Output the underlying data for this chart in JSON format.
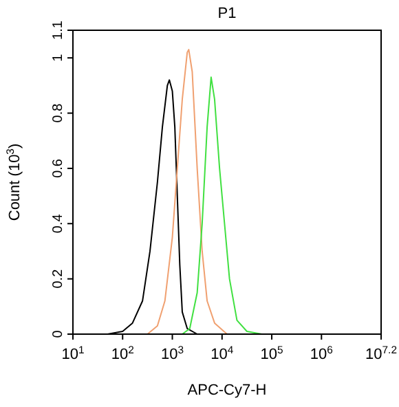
{
  "chart_data": {
    "type": "line",
    "title": "P1",
    "xlabel": "APC-Cy7-H",
    "ylabel": "Count (10$^{3}$)",
    "log": "x",
    "xlim": [
      10,
      15848932
    ],
    "xticks": [
      {
        "value": 10,
        "label": "10$^{1}$"
      },
      {
        "value": 100,
        "label": "10$^{2}$"
      },
      {
        "value": 1000,
        "label": "10$^{3}$"
      },
      {
        "value": 10000,
        "label": "10$^{4}$"
      },
      {
        "value": 100000,
        "label": "10$^{5}$"
      },
      {
        "value": 1000000,
        "label": "10$^{6}$"
      },
      {
        "value": 15848932,
        "label": "10$^{7.2}$"
      }
    ],
    "ylim": [
      0,
      1.1
    ],
    "yticks": [
      0,
      0.2,
      0.4,
      0.6,
      0.8,
      1,
      1.1
    ],
    "grid": false,
    "marker": "none",
    "line_style": "solid",
    "series": [
      {
        "color": "#000000",
        "x": [
          50,
          100,
          158,
          251,
          355,
          501,
          631,
          794,
          871,
          1000,
          1122,
          1259,
          1413,
          1585,
          1995,
          3162
        ],
        "values": [
          0,
          0.01,
          0.04,
          0.12,
          0.3,
          0.55,
          0.75,
          0.9,
          0.92,
          0.88,
          0.75,
          0.5,
          0.25,
          0.08,
          0.02,
          0
        ]
      },
      {
        "color": "#f0a070",
        "x": [
          316,
          501,
          708,
          1000,
          1259,
          1585,
          1995,
          2138,
          2512,
          3162,
          3981,
          5012,
          7079,
          12589
        ],
        "values": [
          0,
          0.03,
          0.12,
          0.35,
          0.6,
          0.85,
          1.02,
          1.03,
          0.95,
          0.6,
          0.3,
          0.12,
          0.04,
          0
        ]
      },
      {
        "color": "#40e040",
        "x": [
          1585,
          2239,
          3162,
          3981,
          5012,
          6026,
          7079,
          8913,
          11220,
          14125,
          19953,
          31623,
          63096
        ],
        "values": [
          0,
          0.02,
          0.15,
          0.4,
          0.75,
          0.93,
          0.85,
          0.6,
          0.4,
          0.2,
          0.05,
          0.01,
          0
        ]
      }
    ]
  }
}
